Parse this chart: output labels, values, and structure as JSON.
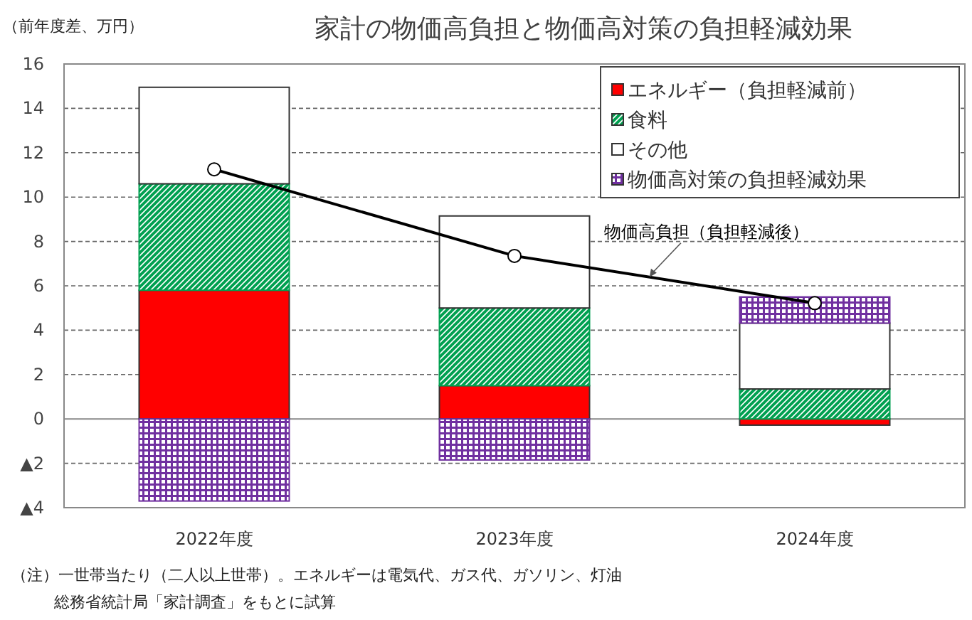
{
  "chart_data": {
    "type": "bar",
    "stacked": true,
    "title": "家計の物価高負担と物価高対策の負担軽減効果",
    "ylabel": "（前年度差、万円）",
    "categories": [
      "2022年度",
      "2023年度",
      "2024年度"
    ],
    "series": [
      {
        "name": "エネルギー（負担軽減前）",
        "color": "#ff0000",
        "values": [
          5.8,
          1.5,
          -0.28
        ]
      },
      {
        "name": "食料",
        "color": "#00a050",
        "values": [
          4.8,
          3.5,
          1.35
        ]
      },
      {
        "name": "その他",
        "color": "#ffffff",
        "values": [
          4.35,
          4.15,
          2.97
        ]
      },
      {
        "name": "物価高対策の負担軽減効果",
        "color": "#7030a0",
        "values": [
          -3.7,
          -1.85,
          1.18
        ]
      },
      {
        "name": "物価高負担（負担軽減後）",
        "type": "line",
        "color": "#000000",
        "marker": "circle",
        "values": [
          11.25,
          7.35,
          5.22
        ]
      }
    ],
    "ylim": [
      -4,
      16
    ],
    "yticks": [
      {
        "value": -4,
        "label": "▲4"
      },
      {
        "value": -2,
        "label": "▲2"
      },
      0,
      2,
      4,
      6,
      8,
      10,
      12,
      14,
      16
    ],
    "grid": "y",
    "legend": "top right",
    "annotations": [
      "（注）一世帯当たり（二人以上世帯）。エネルギーは電気代、ガス代、ガソリン、灯油",
      "総務省統計局「家計調査」をもとに試算"
    ]
  }
}
